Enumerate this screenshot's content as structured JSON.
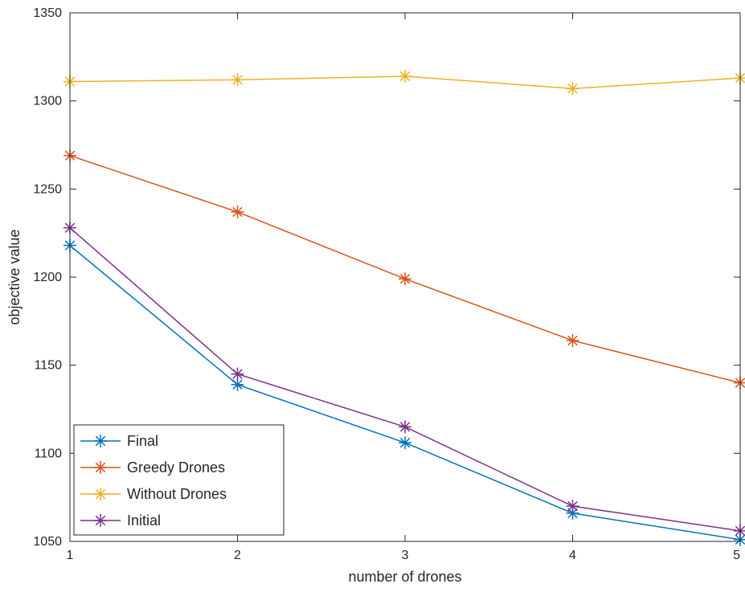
{
  "chart_data": {
    "type": "line",
    "title": "",
    "xlabel": "number of drones",
    "ylabel": "objective value",
    "x": [
      1,
      2,
      3,
      4,
      5
    ],
    "xlim": [
      1,
      5
    ],
    "ylim": [
      1050,
      1350
    ],
    "xticks": [
      "1",
      "2",
      "3",
      "4",
      "5"
    ],
    "yticks": [
      "1050",
      "1100",
      "1150",
      "1200",
      "1250",
      "1300",
      "1350"
    ],
    "grid": false,
    "legend_position": "bottom-left",
    "marker": "asterisk",
    "series": [
      {
        "name": "Final",
        "color": "#0072BD",
        "values": [
          1218,
          1139,
          1106,
          1066,
          1051
        ]
      },
      {
        "name": "Greedy Drones",
        "color": "#D95319",
        "values": [
          1269,
          1237,
          1199,
          1164,
          1140
        ]
      },
      {
        "name": "Without Drones",
        "color": "#EDB120",
        "values": [
          1311,
          1312,
          1314,
          1307,
          1313
        ]
      },
      {
        "name": "Initial",
        "color": "#7E2F8E",
        "values": [
          1228,
          1145,
          1115,
          1070,
          1056
        ]
      }
    ]
  }
}
